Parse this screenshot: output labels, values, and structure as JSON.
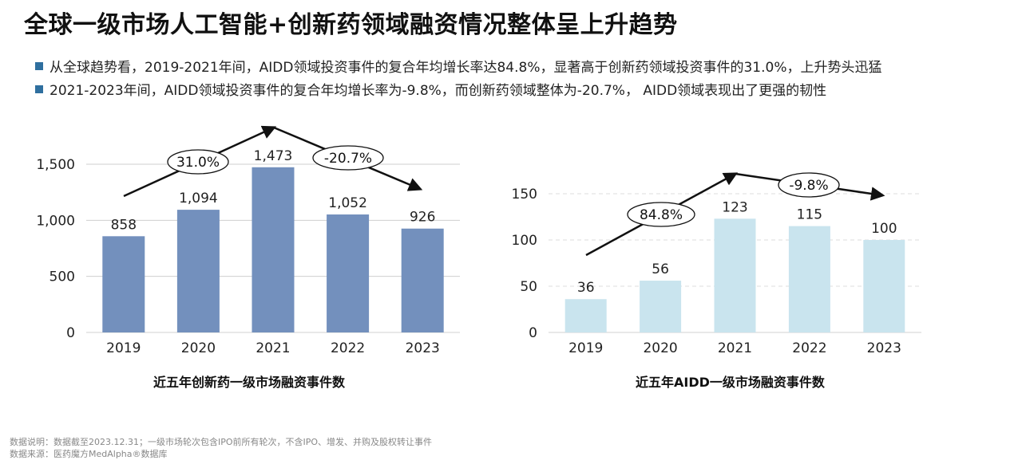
{
  "page": {
    "title": "全球一级市场人工智能+创新药领域融资情况整体呈上升趋势",
    "bullets": [
      "从全球趋势看，2019-2021年间，AIDD领域投资事件的复合年均增长率达84.8%，显著高于创新药领域投资事件的31.0%，上升势头迅猛",
      "2021-2023年间，AIDD领域投资事件的复合年均增长率为-9.8%，而创新药领域整体为-20.7%， AIDD领域表现出了更强的韧性"
    ],
    "footer": {
      "note": "数据说明：数据截至2023.12.31；一级市场轮次包含IPO前所有轮次，不含IPO、增发、并购及股权转让事件",
      "source": "数据来源：医药魔方MedAlpha®数据库"
    }
  },
  "chart_data": [
    {
      "type": "bar",
      "title": "近五年创新药一级市场融资事件数",
      "categories": [
        "2019",
        "2020",
        "2021",
        "2022",
        "2023"
      ],
      "values": [
        858,
        1094,
        1473,
        1052,
        926
      ],
      "value_labels": [
        "858",
        "1,094",
        "1,473",
        "1,052",
        "926"
      ],
      "ylim": [
        0,
        1500
      ],
      "yticks": [
        0,
        500,
        1000,
        1500
      ],
      "ytick_labels": [
        "0",
        "500",
        "1,000",
        "1,500"
      ],
      "grid": true,
      "bar_color": "#7390bd",
      "annotations": [
        {
          "text": "31.0%",
          "from": "2019",
          "to": "2021"
        },
        {
          "text": "-20.7%",
          "from": "2021",
          "to": "2023"
        }
      ]
    },
    {
      "type": "bar",
      "title": "近五年AIDD一级市场融资事件数",
      "categories": [
        "2019",
        "2020",
        "2021",
        "2022",
        "2023"
      ],
      "values": [
        36,
        56,
        123,
        115,
        100
      ],
      "value_labels": [
        "36",
        "56",
        "123",
        "115",
        "100"
      ],
      "ylim": [
        0,
        150
      ],
      "yticks": [
        0,
        50,
        100,
        150
      ],
      "ytick_labels": [
        "0",
        "50",
        "100",
        "150"
      ],
      "grid": true,
      "bar_color": "#c9e4ee",
      "annotations": [
        {
          "text": "84.8%",
          "from": "2019",
          "to": "2021"
        },
        {
          "text": "-9.8%",
          "from": "2021",
          "to": "2023"
        }
      ]
    }
  ]
}
